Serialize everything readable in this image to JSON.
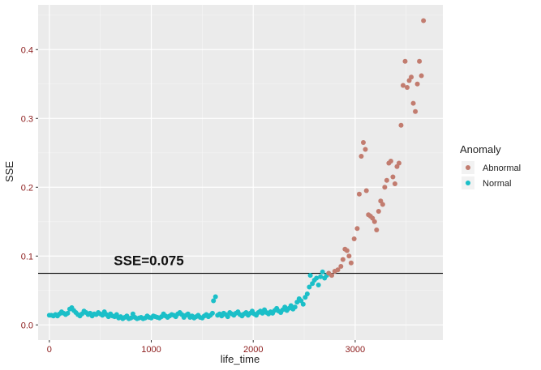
{
  "chart_data": {
    "type": "scatter",
    "title": "",
    "xlabel": "life_time",
    "ylabel": "SSE",
    "xlim": [
      -110,
      3860
    ],
    "ylim": [
      -0.022,
      0.465
    ],
    "x_ticks": [
      0,
      1000,
      2000,
      3000
    ],
    "x_tick_labels": [
      "0",
      "1000",
      "2000",
      "3000"
    ],
    "y_ticks": [
      0.0,
      0.1,
      0.2,
      0.3,
      0.4
    ],
    "y_tick_labels": [
      "0.0",
      "0.1",
      "0.2",
      "0.3",
      "0.4"
    ],
    "grid": true,
    "legend": {
      "title": "Anomaly",
      "position": "right"
    },
    "threshold": {
      "value": 0.075,
      "label": "SSE=0.075",
      "label_x": 600,
      "color": "#000000"
    },
    "series": [
      {
        "name": "Abnormal",
        "color": "#c27c6f",
        "points": [
          [
            2740,
            0.075
          ],
          [
            2770,
            0.072
          ],
          [
            2800,
            0.078
          ],
          [
            2830,
            0.08
          ],
          [
            2860,
            0.085
          ],
          [
            2880,
            0.095
          ],
          [
            2900,
            0.11
          ],
          [
            2920,
            0.108
          ],
          [
            2940,
            0.1
          ],
          [
            2960,
            0.09
          ],
          [
            2990,
            0.125
          ],
          [
            3020,
            0.14
          ],
          [
            3040,
            0.19
          ],
          [
            3060,
            0.245
          ],
          [
            3080,
            0.265
          ],
          [
            3100,
            0.255
          ],
          [
            3110,
            0.195
          ],
          [
            3130,
            0.16
          ],
          [
            3150,
            0.158
          ],
          [
            3170,
            0.155
          ],
          [
            3190,
            0.15
          ],
          [
            3210,
            0.138
          ],
          [
            3230,
            0.165
          ],
          [
            3250,
            0.18
          ],
          [
            3270,
            0.175
          ],
          [
            3290,
            0.2
          ],
          [
            3310,
            0.21
          ],
          [
            3330,
            0.235
          ],
          [
            3350,
            0.238
          ],
          [
            3370,
            0.215
          ],
          [
            3390,
            0.205
          ],
          [
            3410,
            0.23
          ],
          [
            3430,
            0.235
          ],
          [
            3450,
            0.29
          ],
          [
            3470,
            0.348
          ],
          [
            3490,
            0.383
          ],
          [
            3510,
            0.345
          ],
          [
            3530,
            0.355
          ],
          [
            3550,
            0.36
          ],
          [
            3570,
            0.322
          ],
          [
            3590,
            0.31
          ],
          [
            3610,
            0.35
          ],
          [
            3630,
            0.383
          ],
          [
            3650,
            0.362
          ],
          [
            3670,
            0.442
          ]
        ]
      },
      {
        "name": "Normal",
        "color": "#1bbfc8",
        "points": [
          [
            0,
            0.014
          ],
          [
            20,
            0.014
          ],
          [
            40,
            0.013
          ],
          [
            60,
            0.015
          ],
          [
            80,
            0.013
          ],
          [
            100,
            0.016
          ],
          [
            120,
            0.019
          ],
          [
            140,
            0.017
          ],
          [
            160,
            0.015
          ],
          [
            180,
            0.017
          ],
          [
            200,
            0.023
          ],
          [
            220,
            0.025
          ],
          [
            240,
            0.021
          ],
          [
            260,
            0.018
          ],
          [
            280,
            0.015
          ],
          [
            300,
            0.013
          ],
          [
            320,
            0.016
          ],
          [
            340,
            0.02
          ],
          [
            360,
            0.018
          ],
          [
            380,
            0.015
          ],
          [
            400,
            0.017
          ],
          [
            420,
            0.013
          ],
          [
            440,
            0.016
          ],
          [
            460,
            0.015
          ],
          [
            480,
            0.018
          ],
          [
            500,
            0.016
          ],
          [
            520,
            0.014
          ],
          [
            540,
            0.019
          ],
          [
            560,
            0.015
          ],
          [
            580,
            0.012
          ],
          [
            600,
            0.016
          ],
          [
            620,
            0.013
          ],
          [
            640,
            0.012
          ],
          [
            660,
            0.015
          ],
          [
            680,
            0.01
          ],
          [
            700,
            0.012
          ],
          [
            720,
            0.009
          ],
          [
            740,
            0.011
          ],
          [
            760,
            0.013
          ],
          [
            780,
            0.009
          ],
          [
            800,
            0.01
          ],
          [
            820,
            0.016
          ],
          [
            840,
            0.011
          ],
          [
            860,
            0.009
          ],
          [
            880,
            0.01
          ],
          [
            900,
            0.011
          ],
          [
            920,
            0.009
          ],
          [
            940,
            0.01
          ],
          [
            960,
            0.013
          ],
          [
            980,
            0.011
          ],
          [
            1000,
            0.01
          ],
          [
            1020,
            0.013
          ],
          [
            1040,
            0.012
          ],
          [
            1060,
            0.011
          ],
          [
            1080,
            0.01
          ],
          [
            1100,
            0.012
          ],
          [
            1120,
            0.016
          ],
          [
            1140,
            0.013
          ],
          [
            1160,
            0.011
          ],
          [
            1180,
            0.013
          ],
          [
            1200,
            0.015
          ],
          [
            1220,
            0.014
          ],
          [
            1240,
            0.012
          ],
          [
            1260,
            0.016
          ],
          [
            1280,
            0.018
          ],
          [
            1300,
            0.015
          ],
          [
            1320,
            0.011
          ],
          [
            1340,
            0.014
          ],
          [
            1360,
            0.016
          ],
          [
            1380,
            0.011
          ],
          [
            1400,
            0.013
          ],
          [
            1420,
            0.01
          ],
          [
            1440,
            0.012
          ],
          [
            1460,
            0.014
          ],
          [
            1480,
            0.011
          ],
          [
            1500,
            0.01
          ],
          [
            1520,
            0.013
          ],
          [
            1540,
            0.015
          ],
          [
            1560,
            0.012
          ],
          [
            1580,
            0.014
          ],
          [
            1600,
            0.017
          ],
          [
            1610,
            0.035
          ],
          [
            1630,
            0.041
          ],
          [
            1650,
            0.014
          ],
          [
            1670,
            0.016
          ],
          [
            1690,
            0.013
          ],
          [
            1710,
            0.017
          ],
          [
            1730,
            0.015
          ],
          [
            1750,
            0.012
          ],
          [
            1770,
            0.018
          ],
          [
            1790,
            0.016
          ],
          [
            1810,
            0.014
          ],
          [
            1830,
            0.017
          ],
          [
            1850,
            0.019
          ],
          [
            1870,
            0.015
          ],
          [
            1890,
            0.013
          ],
          [
            1910,
            0.016
          ],
          [
            1930,
            0.018
          ],
          [
            1950,
            0.014
          ],
          [
            1970,
            0.017
          ],
          [
            1990,
            0.02
          ],
          [
            2010,
            0.016
          ],
          [
            2030,
            0.014
          ],
          [
            2050,
            0.018
          ],
          [
            2070,
            0.02
          ],
          [
            2090,
            0.017
          ],
          [
            2110,
            0.022
          ],
          [
            2130,
            0.018
          ],
          [
            2150,
            0.016
          ],
          [
            2170,
            0.019
          ],
          [
            2190,
            0.017
          ],
          [
            2210,
            0.021
          ],
          [
            2230,
            0.024
          ],
          [
            2250,
            0.02
          ],
          [
            2270,
            0.018
          ],
          [
            2290,
            0.022
          ],
          [
            2310,
            0.026
          ],
          [
            2330,
            0.021
          ],
          [
            2350,
            0.024
          ],
          [
            2370,
            0.028
          ],
          [
            2390,
            0.023
          ],
          [
            2410,
            0.026
          ],
          [
            2430,
            0.033
          ],
          [
            2450,
            0.038
          ],
          [
            2470,
            0.035
          ],
          [
            2490,
            0.03
          ],
          [
            2510,
            0.04
          ],
          [
            2530,
            0.045
          ],
          [
            2550,
            0.055
          ],
          [
            2560,
            0.072
          ],
          [
            2580,
            0.06
          ],
          [
            2600,
            0.065
          ],
          [
            2620,
            0.068
          ],
          [
            2640,
            0.058
          ],
          [
            2660,
            0.07
          ],
          [
            2680,
            0.077
          ],
          [
            2700,
            0.068
          ],
          [
            2720,
            0.072
          ]
        ]
      }
    ]
  }
}
